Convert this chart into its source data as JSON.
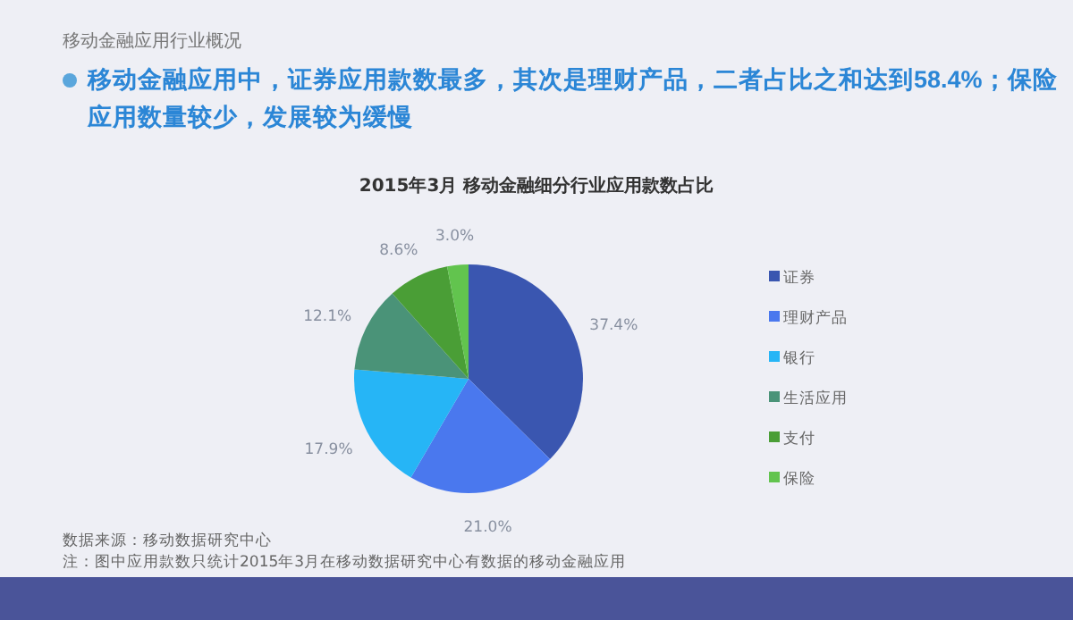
{
  "chart_data": {
    "type": "pie",
    "title": "2015年3月 移动金融细分行业应用款数占比",
    "subtitle": "移动金融应用中，证券应用款数最多，其次是理财产品，二者占比之和达到**58.4%**；保险应用数量较少，发展较为缓慢",
    "categories": [
      "证券",
      "理财产品",
      "银行",
      "生活应用",
      "支付",
      "保险"
    ],
    "values": [
      37.4,
      21.0,
      17.9,
      12.1,
      8.6,
      3.0
    ],
    "colors": [
      "#3a56b0",
      "#4a78ee",
      "#26b5f6",
      "#4a9378",
      "#4a9e36",
      "#62c44e"
    ],
    "value_labels": [
      "37.4%",
      "21.0%",
      "17.9%",
      "12.1%",
      "8.6%",
      "3.0%"
    ],
    "legend": "right",
    "annotations": [
      "移动金融应用行业概况",
      "数据来源：移动数据研究中心",
      "注：图中应用款数只统计2015年3月在移动数据研究中心有数据的移动金融应用"
    ]
  }
}
